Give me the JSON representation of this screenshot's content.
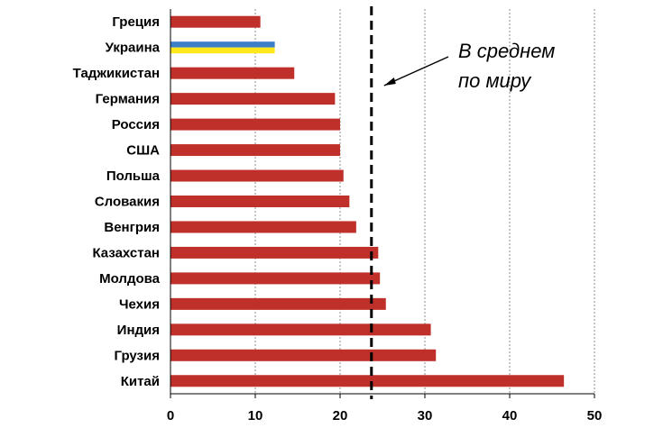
{
  "chart_data": {
    "type": "bar",
    "orientation": "horizontal",
    "categories": [
      "Греция",
      "Украина",
      "Таджикистан",
      "Германия",
      "Россия",
      "США",
      "Польша",
      "Словакия",
      "Венгрия",
      "Казахстан",
      "Молдова",
      "Чехия",
      "Индия",
      "Грузия",
      "Китай"
    ],
    "values": [
      10.6,
      12.3,
      14.6,
      19.4,
      20.0,
      20.0,
      20.4,
      21.1,
      21.9,
      24.5,
      24.7,
      25.4,
      30.7,
      31.3,
      46.4
    ],
    "highlight": {
      "category": "Украина",
      "colors": [
        "#3a7fc8",
        "#ffe81a"
      ]
    },
    "bar_color": "#c0302a",
    "xlim": [
      0,
      50
    ],
    "xticks": [
      0,
      10,
      20,
      30,
      40,
      50
    ],
    "grid": true,
    "reference_line": {
      "value": 23.7,
      "style": "dashed",
      "color": "#000000"
    },
    "annotation": {
      "lines": [
        "В среднем",
        "по миру"
      ],
      "points_to": "reference_line"
    }
  }
}
